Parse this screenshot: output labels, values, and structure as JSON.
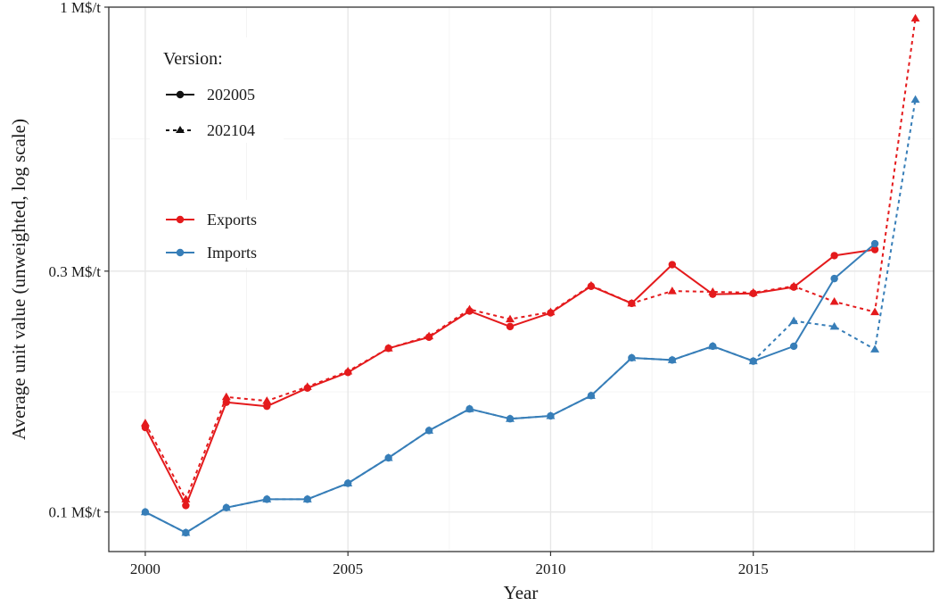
{
  "chart_data": {
    "type": "line",
    "xlabel": "Year",
    "ylabel": "Average unit value (unweighted, log scale)",
    "y_scale": "log",
    "xlim": [
      1999.1,
      2019.45
    ],
    "ylim": [
      0.0835,
      1.0
    ],
    "x_ticks": [
      2000,
      2005,
      2010,
      2015
    ],
    "x_tick_labels": [
      "2000",
      "2005",
      "2010",
      "2015"
    ],
    "y_ticks": [
      0.1,
      0.3,
      1.0
    ],
    "y_tick_labels": [
      "0.1 M$/t",
      "0.3 M$/t",
      "1 M$/t"
    ],
    "y_minor_ticks": [
      0.173,
      0.548
    ],
    "x_minor_ticks": [
      2002.5,
      2007.5,
      2012.5,
      2017.5
    ],
    "grid": true,
    "legend": {
      "position": "top-left",
      "version_title": "Version:",
      "version_entries": [
        {
          "label": "202005",
          "linetype": "solid",
          "marker": "circle"
        },
        {
          "label": "202104",
          "linetype": "dashed",
          "marker": "triangle"
        }
      ],
      "flow_entries": [
        {
          "label": "Exports",
          "color": "#e41a1c"
        },
        {
          "label": "Imports",
          "color": "#377eb8"
        }
      ]
    },
    "series": [
      {
        "flow": "Exports",
        "version": "202005",
        "color": "#e41a1c",
        "linetype": "solid",
        "marker": "circle",
        "x": [
          2000,
          2001,
          2002,
          2003,
          2004,
          2005,
          2006,
          2007,
          2008,
          2009,
          2010,
          2011,
          2012,
          2013,
          2014,
          2015,
          2016,
          2017,
          2018
        ],
        "y": [
          0.147,
          0.103,
          0.165,
          0.162,
          0.176,
          0.189,
          0.211,
          0.222,
          0.25,
          0.233,
          0.248,
          0.28,
          0.259,
          0.309,
          0.27,
          0.271,
          0.279,
          0.322,
          0.331
        ]
      },
      {
        "flow": "Exports",
        "version": "202104",
        "color": "#e41a1c",
        "linetype": "dashed",
        "marker": "triangle",
        "x": [
          2000,
          2001,
          2002,
          2003,
          2004,
          2005,
          2006,
          2007,
          2008,
          2009,
          2010,
          2011,
          2012,
          2013,
          2014,
          2015,
          2016,
          2017,
          2018,
          2019
        ],
        "y": [
          0.15,
          0.106,
          0.169,
          0.166,
          0.177,
          0.19,
          0.211,
          0.223,
          0.252,
          0.241,
          0.249,
          0.281,
          0.259,
          0.274,
          0.273,
          0.272,
          0.28,
          0.261,
          0.249,
          0.95
        ]
      },
      {
        "flow": "Imports",
        "version": "202005",
        "color": "#377eb8",
        "linetype": "solid",
        "marker": "circle",
        "x": [
          2000,
          2001,
          2002,
          2003,
          2004,
          2005,
          2006,
          2007,
          2008,
          2009,
          2010,
          2011,
          2012,
          2013,
          2014,
          2015,
          2016,
          2017,
          2018
        ],
        "y": [
          0.1,
          0.091,
          0.102,
          0.106,
          0.106,
          0.114,
          0.128,
          0.145,
          0.16,
          0.153,
          0.155,
          0.17,
          0.202,
          0.2,
          0.213,
          0.199,
          0.213,
          0.29,
          0.34
        ]
      },
      {
        "flow": "Imports",
        "version": "202104",
        "color": "#377eb8",
        "linetype": "dashed",
        "marker": "triangle",
        "x": [
          2000,
          2001,
          2002,
          2003,
          2004,
          2005,
          2006,
          2007,
          2008,
          2009,
          2010,
          2011,
          2012,
          2013,
          2014,
          2015,
          2016,
          2017,
          2018,
          2019
        ],
        "y": [
          0.1,
          0.091,
          0.102,
          0.106,
          0.106,
          0.114,
          0.128,
          0.145,
          0.16,
          0.153,
          0.155,
          0.17,
          0.202,
          0.2,
          0.213,
          0.199,
          0.239,
          0.233,
          0.21,
          0.656
        ]
      }
    ]
  }
}
